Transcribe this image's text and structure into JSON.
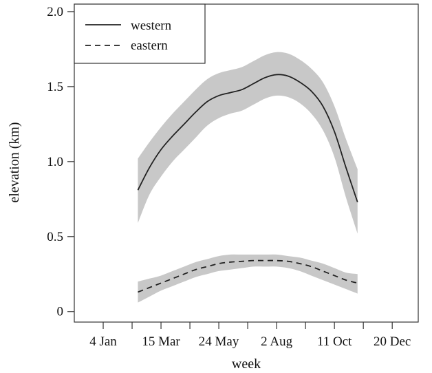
{
  "chart_data": {
    "type": "line",
    "xlabel": "week",
    "ylabel": "elevation (km)",
    "x_ticks": [
      {
        "label": "4 Jan",
        "week": 1
      },
      {
        "label": "15 Mar",
        "week": 11
      },
      {
        "label": "24 May",
        "week": 21
      },
      {
        "label": "2 Aug",
        "week": 31
      },
      {
        "label": "11 Oct",
        "week": 41
      },
      {
        "label": "20 Dec",
        "week": 51
      }
    ],
    "y_ticks": [
      "0",
      "0.5",
      "1.0",
      "1.5",
      "2.0"
    ],
    "xlim": [
      -4,
      55.5
    ],
    "ylim": [
      -0.07,
      2.05
    ],
    "legend": {
      "position": "top-left"
    },
    "series": [
      {
        "name": "western",
        "style": "solid",
        "color": "#222222",
        "band_color": "#c8c8c8",
        "x": [
          7,
          9,
          11,
          13,
          15,
          17,
          19,
          21,
          23,
          25,
          27,
          29,
          31,
          33,
          35,
          37,
          39,
          41,
          43,
          45
        ],
        "y": [
          0.81,
          0.96,
          1.08,
          1.17,
          1.25,
          1.33,
          1.4,
          1.44,
          1.46,
          1.48,
          1.52,
          1.56,
          1.58,
          1.57,
          1.53,
          1.47,
          1.37,
          1.2,
          0.96,
          0.73
        ],
        "lower": [
          0.59,
          0.78,
          0.9,
          1.0,
          1.08,
          1.16,
          1.24,
          1.29,
          1.32,
          1.34,
          1.38,
          1.42,
          1.44,
          1.43,
          1.39,
          1.32,
          1.21,
          1.03,
          0.76,
          0.52
        ],
        "upper": [
          1.02,
          1.13,
          1.23,
          1.32,
          1.4,
          1.48,
          1.55,
          1.59,
          1.61,
          1.63,
          1.67,
          1.71,
          1.73,
          1.72,
          1.68,
          1.62,
          1.53,
          1.37,
          1.15,
          0.95
        ]
      },
      {
        "name": "eastern",
        "style": "dashed",
        "color": "#222222",
        "band_color": "#c8c8c8",
        "x": [
          7,
          9,
          11,
          13,
          15,
          17,
          19,
          21,
          23,
          25,
          27,
          29,
          31,
          33,
          35,
          37,
          39,
          41,
          43,
          45
        ],
        "y": [
          0.13,
          0.16,
          0.19,
          0.22,
          0.25,
          0.28,
          0.3,
          0.32,
          0.33,
          0.335,
          0.34,
          0.34,
          0.34,
          0.335,
          0.32,
          0.3,
          0.27,
          0.24,
          0.21,
          0.19
        ],
        "lower": [
          0.06,
          0.1,
          0.14,
          0.17,
          0.2,
          0.23,
          0.25,
          0.27,
          0.28,
          0.29,
          0.3,
          0.3,
          0.3,
          0.29,
          0.27,
          0.24,
          0.21,
          0.18,
          0.15,
          0.12
        ],
        "upper": [
          0.2,
          0.22,
          0.24,
          0.27,
          0.3,
          0.33,
          0.35,
          0.37,
          0.38,
          0.38,
          0.38,
          0.38,
          0.38,
          0.37,
          0.36,
          0.34,
          0.32,
          0.29,
          0.26,
          0.25
        ]
      }
    ]
  }
}
